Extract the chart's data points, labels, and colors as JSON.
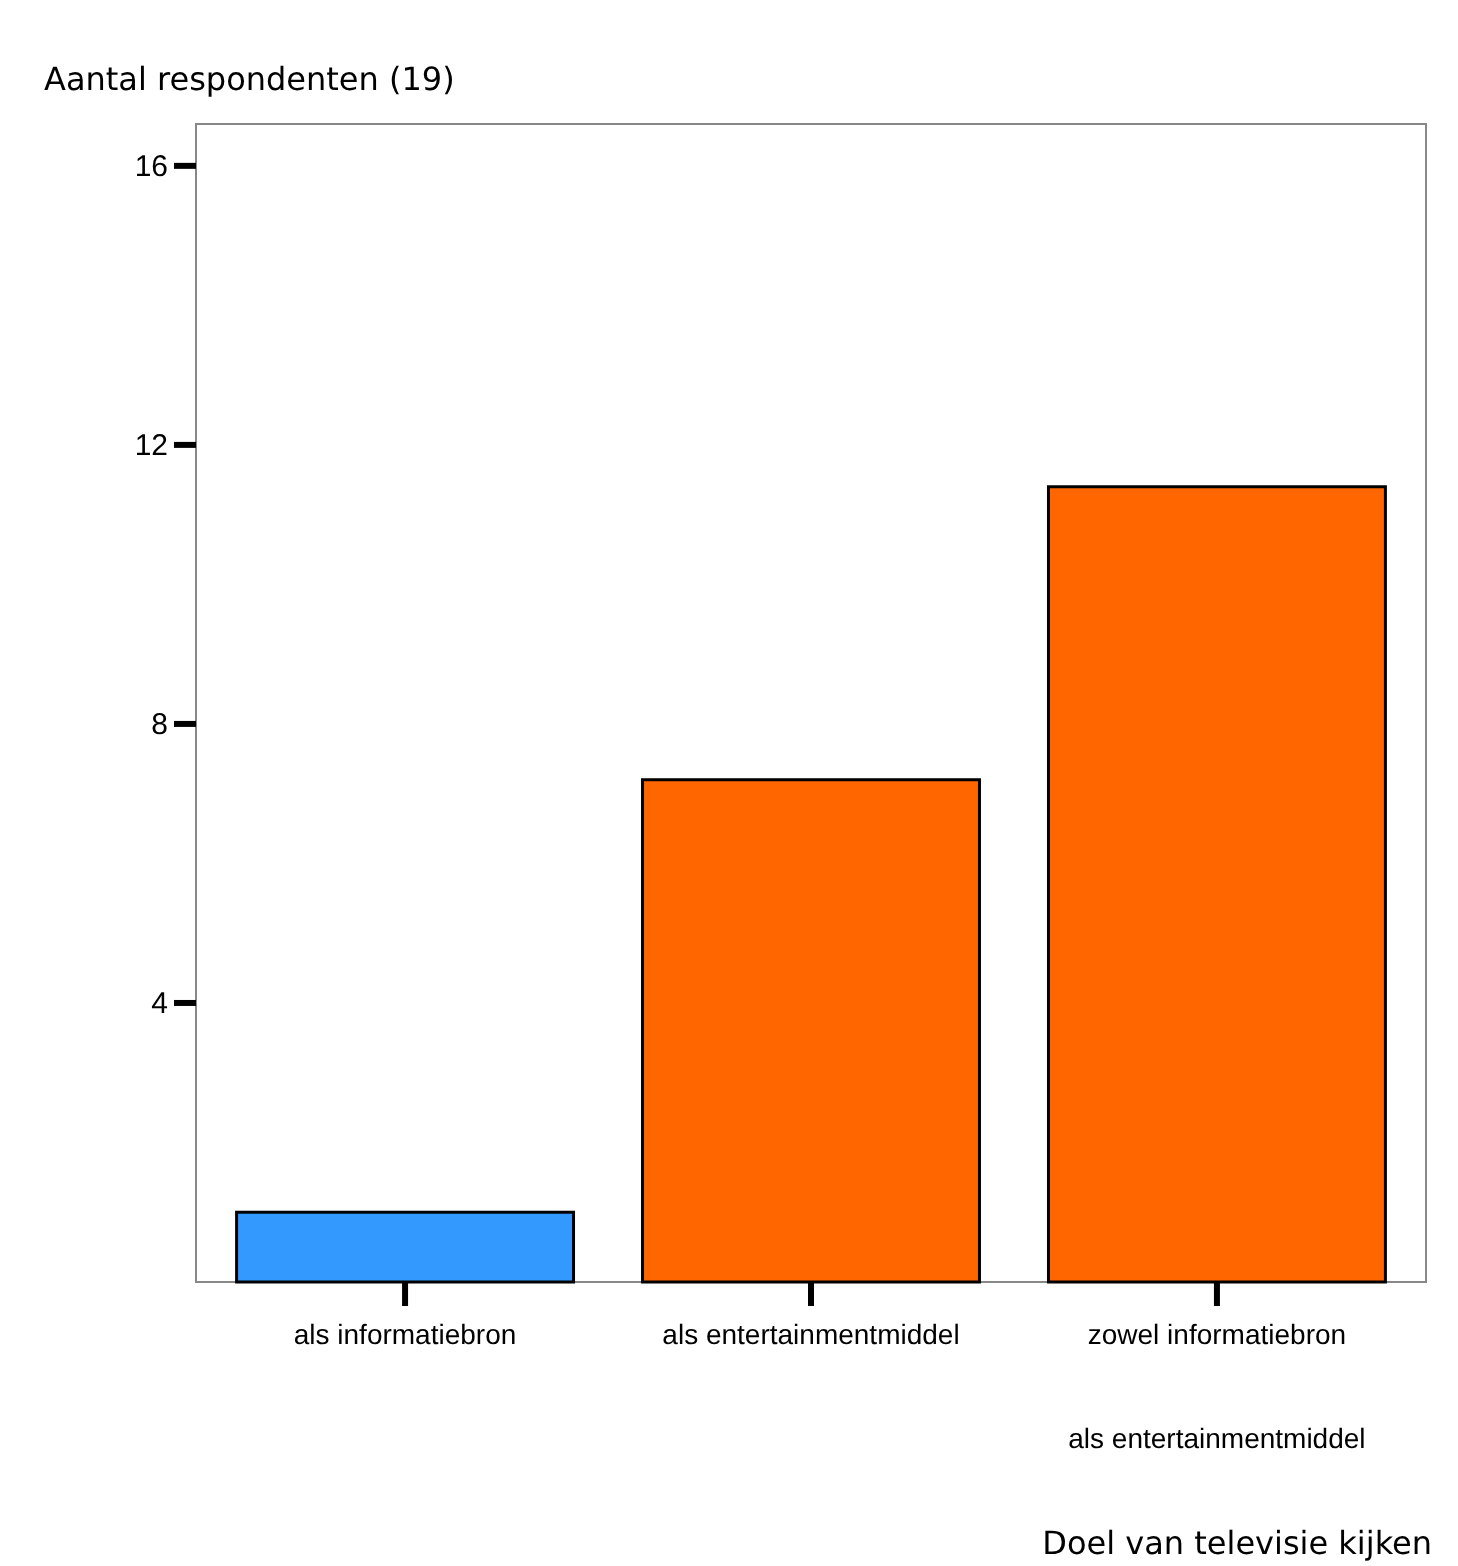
{
  "chart_data": {
    "type": "bar",
    "title": "Aantal respondenten (19)",
    "annotations": [
      "Doel van televisie kijken"
    ],
    "categories": [
      "als informatiebron",
      "als entertainmentmiddel",
      "zowel informatiebron\nals entertainmentmiddel"
    ],
    "values": [
      1,
      7.2,
      11.4
    ],
    "colors": [
      "#3399ff",
      "#ff6600",
      "#ff6600"
    ],
    "ylim": [
      0,
      16.6
    ],
    "yticks": [
      4,
      8,
      12,
      16
    ],
    "grid": false
  }
}
